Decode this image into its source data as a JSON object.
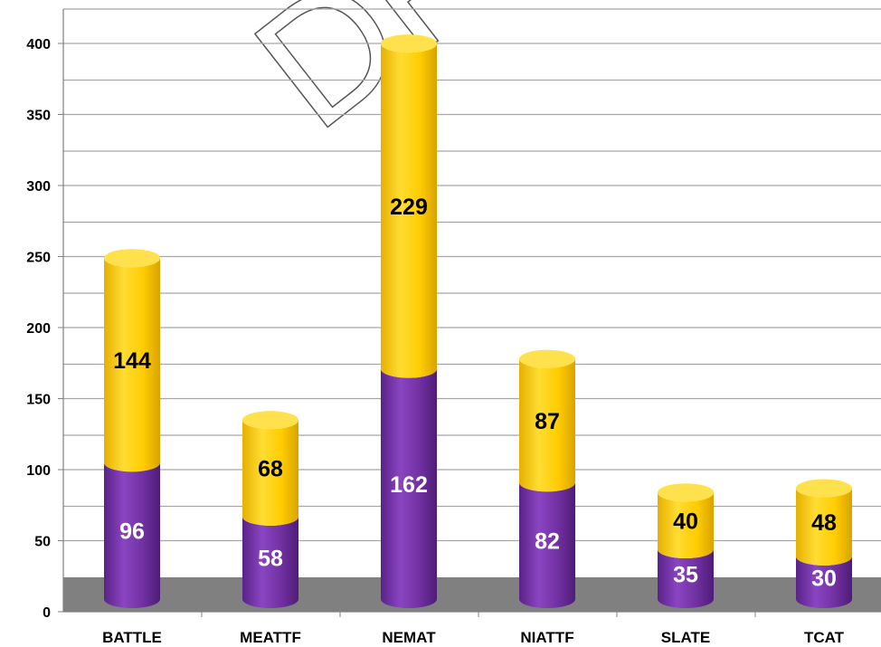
{
  "chart_data": {
    "type": "bar",
    "stacked": true,
    "style": "3d-cylinder",
    "categories": [
      "BATTLE",
      "MEATTF",
      "NEMAT",
      "NIATTF",
      "SLATE",
      "TCAT"
    ],
    "series": [
      {
        "values": [
          96,
          58,
          162,
          82,
          35,
          30
        ],
        "color": "#7030A0",
        "label_color": "#ffffff"
      },
      {
        "values": [
          144,
          68,
          229,
          87,
          40,
          48
        ],
        "color": "#FFCC00",
        "label_color": "#000000"
      }
    ],
    "ylim": [
      0,
      400
    ],
    "yticks": [
      0,
      50,
      100,
      150,
      200,
      250,
      300,
      350,
      400
    ],
    "y_tick_labels": [
      "0",
      "50",
      "100",
      "150",
      "200",
      "250",
      "300",
      "350",
      "400"
    ],
    "grid": true,
    "legend": "none",
    "floor_color": "#808080"
  },
  "watermark": "DRAFT"
}
